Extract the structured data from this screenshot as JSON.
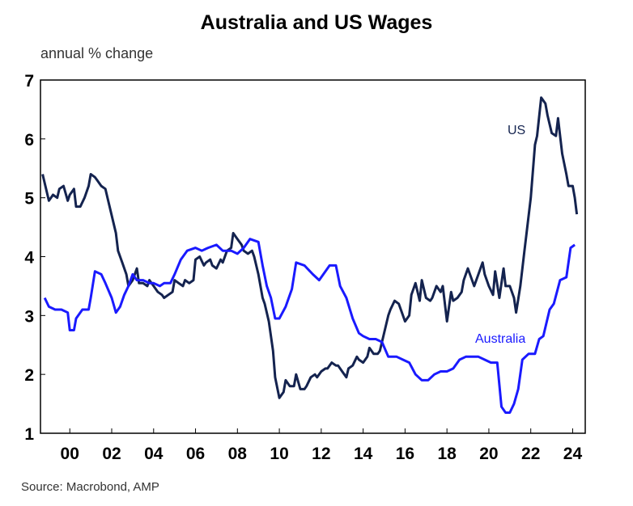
{
  "chart_data": {
    "type": "line",
    "title": "Australia and US Wages",
    "subtitle": "annual % change",
    "source": "Source: Macrobond, AMP",
    "xlim": [
      1998.6,
      2024.6
    ],
    "ylim": [
      1,
      7
    ],
    "y_ticks": [
      "1",
      "2",
      "3",
      "4",
      "5",
      "6",
      "7"
    ],
    "x_ticks": [
      {
        "year": 2000,
        "label": "00"
      },
      {
        "year": 2002,
        "label": "02"
      },
      {
        "year": 2004,
        "label": "04"
      },
      {
        "year": 2006,
        "label": "06"
      },
      {
        "year": 2008,
        "label": "08"
      },
      {
        "year": 2010,
        "label": "10"
      },
      {
        "year": 2012,
        "label": "12"
      },
      {
        "year": 2014,
        "label": "14"
      },
      {
        "year": 2016,
        "label": "16"
      },
      {
        "year": 2018,
        "label": "18"
      },
      {
        "year": 2020,
        "label": "20"
      },
      {
        "year": 2022,
        "label": "22"
      },
      {
        "year": 2024,
        "label": "24"
      }
    ],
    "grid": false,
    "series": [
      {
        "name": "US",
        "color": "#14234f",
        "points": [
          [
            1998.7,
            5.4
          ],
          [
            1998.9,
            5.1
          ],
          [
            1999.0,
            4.95
          ],
          [
            1999.2,
            5.05
          ],
          [
            1999.4,
            5.0
          ],
          [
            1999.5,
            5.15
          ],
          [
            1999.7,
            5.2
          ],
          [
            1999.9,
            4.95
          ],
          [
            2000.0,
            5.05
          ],
          [
            2000.2,
            5.15
          ],
          [
            2000.3,
            4.85
          ],
          [
            2000.5,
            4.85
          ],
          [
            2000.7,
            5.0
          ],
          [
            2000.9,
            5.2
          ],
          [
            2001.0,
            5.4
          ],
          [
            2001.2,
            5.35
          ],
          [
            2001.3,
            5.3
          ],
          [
            2001.5,
            5.2
          ],
          [
            2001.7,
            5.15
          ],
          [
            2001.8,
            5.0
          ],
          [
            2002.0,
            4.7
          ],
          [
            2002.2,
            4.4
          ],
          [
            2002.3,
            4.1
          ],
          [
            2002.5,
            3.9
          ],
          [
            2002.7,
            3.7
          ],
          [
            2002.8,
            3.5
          ],
          [
            2003.0,
            3.6
          ],
          [
            2003.2,
            3.8
          ],
          [
            2003.3,
            3.55
          ],
          [
            2003.5,
            3.55
          ],
          [
            2003.7,
            3.5
          ],
          [
            2003.8,
            3.6
          ],
          [
            2004.0,
            3.5
          ],
          [
            2004.2,
            3.4
          ],
          [
            2004.4,
            3.35
          ],
          [
            2004.5,
            3.3
          ],
          [
            2004.7,
            3.35
          ],
          [
            2004.9,
            3.4
          ],
          [
            2005.0,
            3.6
          ],
          [
            2005.2,
            3.55
          ],
          [
            2005.4,
            3.5
          ],
          [
            2005.5,
            3.6
          ],
          [
            2005.7,
            3.55
          ],
          [
            2005.9,
            3.6
          ],
          [
            2006.0,
            3.95
          ],
          [
            2006.2,
            4.0
          ],
          [
            2006.4,
            3.85
          ],
          [
            2006.5,
            3.9
          ],
          [
            2006.7,
            3.95
          ],
          [
            2006.8,
            3.85
          ],
          [
            2007.0,
            3.8
          ],
          [
            2007.2,
            3.95
          ],
          [
            2007.3,
            3.9
          ],
          [
            2007.5,
            4.1
          ],
          [
            2007.7,
            4.15
          ],
          [
            2007.8,
            4.4
          ],
          [
            2008.0,
            4.3
          ],
          [
            2008.2,
            4.2
          ],
          [
            2008.3,
            4.1
          ],
          [
            2008.5,
            4.05
          ],
          [
            2008.7,
            4.1
          ],
          [
            2008.8,
            4.0
          ],
          [
            2009.0,
            3.7
          ],
          [
            2009.2,
            3.3
          ],
          [
            2009.3,
            3.2
          ],
          [
            2009.5,
            2.9
          ],
          [
            2009.7,
            2.4
          ],
          [
            2009.8,
            1.95
          ],
          [
            2010.0,
            1.6
          ],
          [
            2010.2,
            1.7
          ],
          [
            2010.3,
            1.9
          ],
          [
            2010.5,
            1.8
          ],
          [
            2010.7,
            1.8
          ],
          [
            2010.8,
            2.0
          ],
          [
            2011.0,
            1.75
          ],
          [
            2011.2,
            1.75
          ],
          [
            2011.3,
            1.8
          ],
          [
            2011.5,
            1.95
          ],
          [
            2011.7,
            2.0
          ],
          [
            2011.8,
            1.95
          ],
          [
            2012.0,
            2.05
          ],
          [
            2012.2,
            2.1
          ],
          [
            2012.3,
            2.1
          ],
          [
            2012.5,
            2.2
          ],
          [
            2012.7,
            2.15
          ],
          [
            2012.8,
            2.15
          ],
          [
            2013.0,
            2.05
          ],
          [
            2013.2,
            1.95
          ],
          [
            2013.3,
            2.1
          ],
          [
            2013.5,
            2.15
          ],
          [
            2013.7,
            2.3
          ],
          [
            2013.8,
            2.25
          ],
          [
            2014.0,
            2.2
          ],
          [
            2014.2,
            2.3
          ],
          [
            2014.3,
            2.45
          ],
          [
            2014.5,
            2.35
          ],
          [
            2014.7,
            2.35
          ],
          [
            2014.8,
            2.4
          ],
          [
            2015.0,
            2.7
          ],
          [
            2015.2,
            3.0
          ],
          [
            2015.3,
            3.1
          ],
          [
            2015.5,
            3.25
          ],
          [
            2015.7,
            3.2
          ],
          [
            2015.8,
            3.1
          ],
          [
            2016.0,
            2.9
          ],
          [
            2016.2,
            3.0
          ],
          [
            2016.3,
            3.35
          ],
          [
            2016.5,
            3.55
          ],
          [
            2016.7,
            3.25
          ],
          [
            2016.8,
            3.6
          ],
          [
            2017.0,
            3.3
          ],
          [
            2017.2,
            3.25
          ],
          [
            2017.3,
            3.3
          ],
          [
            2017.5,
            3.5
          ],
          [
            2017.7,
            3.4
          ],
          [
            2017.8,
            3.5
          ],
          [
            2018.0,
            2.9
          ],
          [
            2018.2,
            3.4
          ],
          [
            2018.3,
            3.25
          ],
          [
            2018.5,
            3.3
          ],
          [
            2018.7,
            3.4
          ],
          [
            2018.8,
            3.6
          ],
          [
            2019.0,
            3.8
          ],
          [
            2019.2,
            3.6
          ],
          [
            2019.3,
            3.5
          ],
          [
            2019.5,
            3.7
          ],
          [
            2019.7,
            3.9
          ],
          [
            2019.8,
            3.7
          ],
          [
            2020.0,
            3.5
          ],
          [
            2020.2,
            3.35
          ],
          [
            2020.3,
            3.75
          ],
          [
            2020.5,
            3.3
          ],
          [
            2020.7,
            3.8
          ],
          [
            2020.8,
            3.5
          ],
          [
            2021.0,
            3.5
          ],
          [
            2021.2,
            3.3
          ],
          [
            2021.3,
            3.05
          ],
          [
            2021.5,
            3.5
          ],
          [
            2021.7,
            4.1
          ],
          [
            2021.8,
            4.4
          ],
          [
            2022.0,
            5.0
          ],
          [
            2022.2,
            5.9
          ],
          [
            2022.3,
            6.05
          ],
          [
            2022.5,
            6.7
          ],
          [
            2022.7,
            6.6
          ],
          [
            2022.8,
            6.4
          ],
          [
            2023.0,
            6.1
          ],
          [
            2023.2,
            6.05
          ],
          [
            2023.3,
            6.35
          ],
          [
            2023.5,
            5.75
          ],
          [
            2023.7,
            5.4
          ],
          [
            2023.8,
            5.2
          ],
          [
            2024.0,
            5.2
          ],
          [
            2024.1,
            5.0
          ],
          [
            2024.2,
            4.72
          ]
        ]
      },
      {
        "name": "Australia",
        "color": "#1a1aff",
        "points": [
          [
            1998.8,
            3.3
          ],
          [
            1999.0,
            3.15
          ],
          [
            1999.3,
            3.1
          ],
          [
            1999.6,
            3.1
          ],
          [
            1999.9,
            3.05
          ],
          [
            2000.0,
            2.75
          ],
          [
            2000.2,
            2.75
          ],
          [
            2000.3,
            2.95
          ],
          [
            2000.6,
            3.1
          ],
          [
            2000.9,
            3.1
          ],
          [
            2001.0,
            3.3
          ],
          [
            2001.2,
            3.75
          ],
          [
            2001.5,
            3.7
          ],
          [
            2001.7,
            3.55
          ],
          [
            2002.0,
            3.3
          ],
          [
            2002.2,
            3.05
          ],
          [
            2002.4,
            3.15
          ],
          [
            2002.6,
            3.35
          ],
          [
            2002.8,
            3.5
          ],
          [
            2003.0,
            3.7
          ],
          [
            2003.2,
            3.6
          ],
          [
            2003.5,
            3.6
          ],
          [
            2003.8,
            3.55
          ],
          [
            2004.0,
            3.55
          ],
          [
            2004.3,
            3.5
          ],
          [
            2004.5,
            3.55
          ],
          [
            2004.8,
            3.55
          ],
          [
            2005.0,
            3.7
          ],
          [
            2005.3,
            3.95
          ],
          [
            2005.6,
            4.1
          ],
          [
            2006.0,
            4.15
          ],
          [
            2006.3,
            4.1
          ],
          [
            2006.6,
            4.15
          ],
          [
            2007.0,
            4.2
          ],
          [
            2007.3,
            4.1
          ],
          [
            2007.7,
            4.1
          ],
          [
            2008.0,
            4.05
          ],
          [
            2008.3,
            4.15
          ],
          [
            2008.6,
            4.3
          ],
          [
            2009.0,
            4.25
          ],
          [
            2009.2,
            3.85
          ],
          [
            2009.4,
            3.5
          ],
          [
            2009.6,
            3.3
          ],
          [
            2009.8,
            2.95
          ],
          [
            2010.0,
            2.95
          ],
          [
            2010.3,
            3.15
          ],
          [
            2010.6,
            3.45
          ],
          [
            2010.8,
            3.9
          ],
          [
            2011.2,
            3.85
          ],
          [
            2011.6,
            3.7
          ],
          [
            2011.9,
            3.6
          ],
          [
            2012.2,
            3.75
          ],
          [
            2012.4,
            3.85
          ],
          [
            2012.7,
            3.85
          ],
          [
            2012.9,
            3.5
          ],
          [
            2013.2,
            3.3
          ],
          [
            2013.5,
            2.95
          ],
          [
            2013.8,
            2.7
          ],
          [
            2014.0,
            2.65
          ],
          [
            2014.3,
            2.6
          ],
          [
            2014.6,
            2.6
          ],
          [
            2014.9,
            2.55
          ],
          [
            2015.2,
            2.3
          ],
          [
            2015.6,
            2.3
          ],
          [
            2015.9,
            2.25
          ],
          [
            2016.2,
            2.2
          ],
          [
            2016.5,
            2.0
          ],
          [
            2016.8,
            1.9
          ],
          [
            2017.1,
            1.9
          ],
          [
            2017.4,
            2.0
          ],
          [
            2017.7,
            2.05
          ],
          [
            2018.0,
            2.05
          ],
          [
            2018.3,
            2.1
          ],
          [
            2018.6,
            2.25
          ],
          [
            2018.9,
            2.3
          ],
          [
            2019.2,
            2.3
          ],
          [
            2019.5,
            2.3
          ],
          [
            2019.8,
            2.25
          ],
          [
            2020.1,
            2.2
          ],
          [
            2020.4,
            2.2
          ],
          [
            2020.6,
            1.45
          ],
          [
            2020.8,
            1.35
          ],
          [
            2021.0,
            1.35
          ],
          [
            2021.2,
            1.5
          ],
          [
            2021.4,
            1.75
          ],
          [
            2021.6,
            2.25
          ],
          [
            2021.9,
            2.35
          ],
          [
            2022.2,
            2.35
          ],
          [
            2022.4,
            2.6
          ],
          [
            2022.6,
            2.65
          ],
          [
            2022.9,
            3.1
          ],
          [
            2023.1,
            3.2
          ],
          [
            2023.4,
            3.6
          ],
          [
            2023.7,
            3.65
          ],
          [
            2023.9,
            4.15
          ],
          [
            2024.1,
            4.2
          ]
        ]
      }
    ]
  }
}
